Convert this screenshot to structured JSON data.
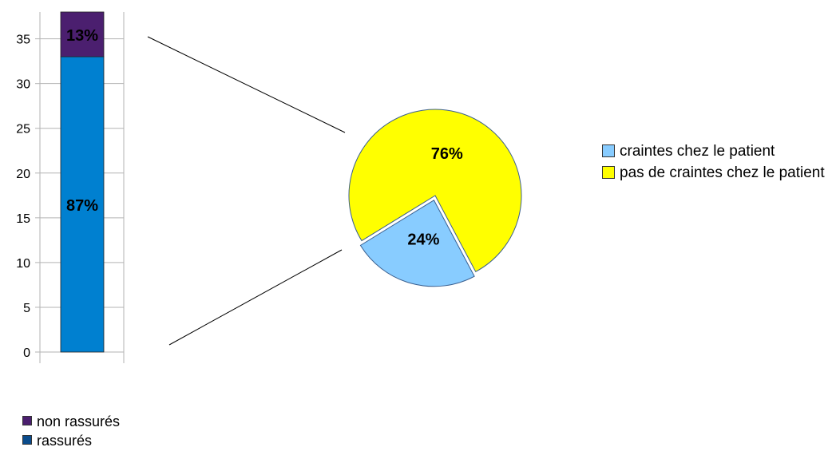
{
  "chart_data": [
    {
      "type": "bar",
      "stacked": true,
      "categories": [
        ""
      ],
      "series": [
        {
          "name": "rassurés",
          "values": [
            33
          ],
          "label": "87%",
          "color": "#0080d0"
        },
        {
          "name": "non rassurés",
          "values": [
            5
          ],
          "label": "13%",
          "color": "#4b1f6f"
        }
      ],
      "ylim": [
        0,
        38
      ],
      "yticks": [
        0,
        5,
        10,
        15,
        20,
        25,
        30,
        35
      ],
      "grid": true,
      "legend_placement": "bottom-left",
      "legend": [
        {
          "label": "non rassurés",
          "color": "#4b1f6f"
        },
        {
          "label": "rassurés",
          "color": "#0b4c8c"
        }
      ]
    },
    {
      "type": "pie",
      "slices": [
        {
          "name": "craintes chez le patient",
          "value": 24,
          "label": "24%",
          "color": "#88ccff",
          "exploded": true
        },
        {
          "name": "pas de craintes chez le patient",
          "value": 76,
          "label": "76%",
          "color": "#ffff00",
          "exploded": false
        }
      ],
      "legend_placement": "right",
      "legend": [
        {
          "label": "craintes chez le patient",
          "color": "#88ccff"
        },
        {
          "label": "pas de craintes chez le patient",
          "color": "#ffff00"
        }
      ]
    }
  ]
}
